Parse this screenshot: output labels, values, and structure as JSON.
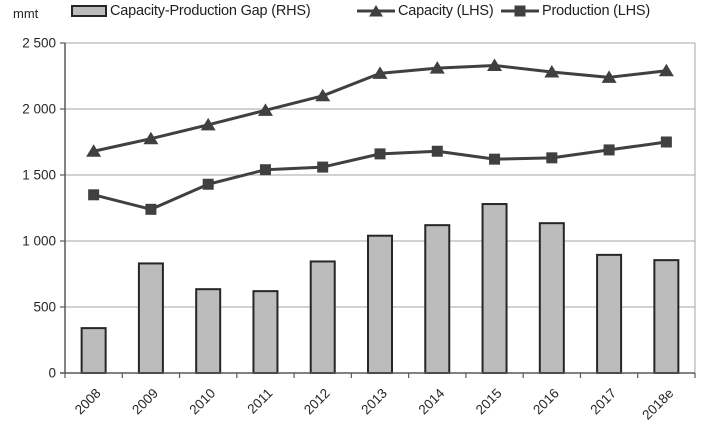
{
  "chart_data": {
    "type": "combo",
    "title": "",
    "ylabel": "mmt",
    "xlabel": "",
    "categories": [
      "2008",
      "2009",
      "2010",
      "2011",
      "2012",
      "2013",
      "2014",
      "2015",
      "2016",
      "2017",
      "2018e"
    ],
    "series": [
      {
        "name": "Capacity-Production Gap (RHS)",
        "type": "bar",
        "marker": "none",
        "axis": "right",
        "values": [
          340,
          830,
          635,
          620,
          845,
          1040,
          1120,
          1280,
          1135,
          895,
          855
        ]
      },
      {
        "name": "Capacity (LHS)",
        "type": "line",
        "marker": "triangle",
        "axis": "left",
        "values": [
          1680,
          1775,
          1880,
          1990,
          2100,
          2270,
          2310,
          2330,
          2280,
          2240,
          2290
        ]
      },
      {
        "name": "Production (LHS)",
        "type": "line",
        "marker": "square",
        "axis": "left",
        "values": [
          1350,
          1240,
          1430,
          1540,
          1560,
          1660,
          1680,
          1620,
          1630,
          1690,
          1750
        ]
      }
    ],
    "ylim": [
      0,
      2500
    ],
    "y_ticks": [
      {
        "value": 0,
        "label": "0"
      },
      {
        "value": 500,
        "label": "500"
      },
      {
        "value": 1000,
        "label": "1 000"
      },
      {
        "value": 1500,
        "label": "1 500"
      },
      {
        "value": 2000,
        "label": "2 000"
      },
      {
        "value": 2500,
        "label": "2 500"
      }
    ],
    "grid": true,
    "legend_position": "top",
    "colors": {
      "bar_fill": "#bcbcbc",
      "bar_border": "#262626",
      "line": "#404040",
      "gridline": "#a6a6a6",
      "axis": "#595959",
      "text": "#262626"
    }
  }
}
